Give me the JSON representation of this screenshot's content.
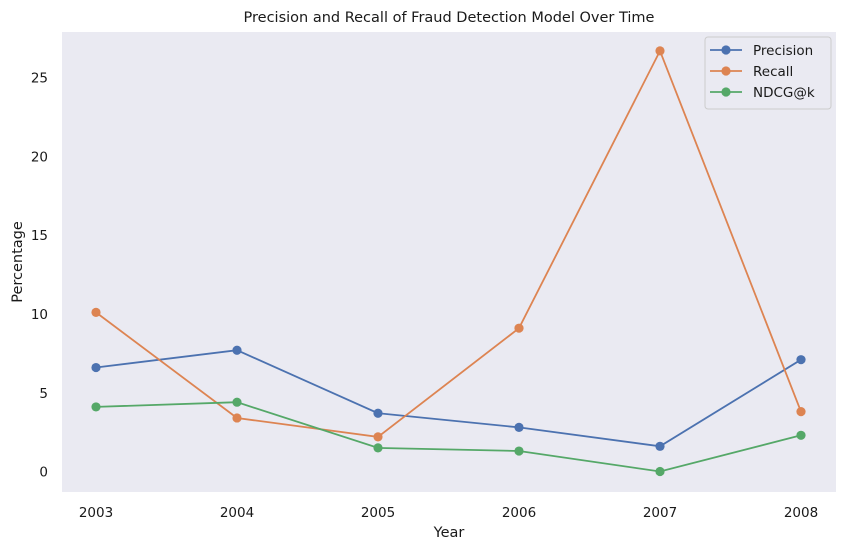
{
  "chart_data": {
    "type": "line",
    "title": "Precision and Recall of Fraud Detection Model Over Time",
    "xlabel": "Year",
    "ylabel": "Percentage",
    "categories": [
      "2003",
      "2004",
      "2005",
      "2006",
      "2007",
      "2008"
    ],
    "yticks": [
      0,
      5,
      10,
      15,
      20,
      25
    ],
    "ylim": [
      -1.3,
      27.9
    ],
    "grid": false,
    "legend_position": "top-right",
    "background_color": "#eaeaf2",
    "series": [
      {
        "name": "Precision",
        "color": "#4c72b0",
        "values": [
          6.6,
          7.7,
          3.7,
          2.8,
          1.6,
          7.1
        ]
      },
      {
        "name": "Recall",
        "color": "#dd8452",
        "values": [
          10.1,
          3.4,
          2.2,
          9.1,
          26.7,
          3.8
        ]
      },
      {
        "name": "NDCG@k",
        "color": "#55a868",
        "values": [
          4.1,
          4.4,
          1.5,
          1.3,
          0.0,
          2.3
        ]
      }
    ]
  }
}
